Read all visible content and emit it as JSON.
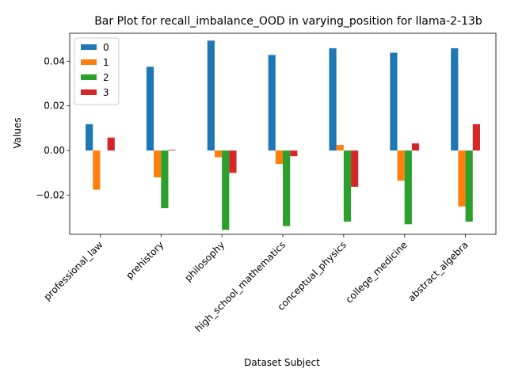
{
  "chart_data": {
    "type": "bar",
    "title": "Bar Plot for recall_imbalance_OOD in varying_position for llama-2-13b",
    "xlabel": "Dataset Subject",
    "ylabel": "Values",
    "ylim": [
      -0.0375,
      0.0525
    ],
    "yticks": [
      -0.02,
      0.0,
      0.02,
      0.04
    ],
    "ytick_labels": [
      "−0.02",
      "0.00",
      "0.02",
      "0.04"
    ],
    "grid": false,
    "legend_position": "top-left",
    "categories": [
      "professional_law",
      "prehistory",
      "philosophy",
      "high_school_mathematics",
      "conceptual_physics",
      "college_medicine",
      "abstract_algebra"
    ],
    "series": [
      {
        "name": "0",
        "color": "#1f77b4",
        "values": [
          0.0118,
          0.0375,
          0.0492,
          0.0428,
          0.0458,
          0.0438,
          0.0458
        ]
      },
      {
        "name": "1",
        "color": "#ff7f0e",
        "values": [
          -0.0175,
          -0.012,
          -0.003,
          -0.006,
          0.0025,
          -0.0135,
          -0.025
        ]
      },
      {
        "name": "2",
        "color": "#2ca02c",
        "values": [
          0.0,
          -0.0258,
          -0.0355,
          -0.0338,
          -0.0318,
          -0.033,
          -0.0318
        ]
      },
      {
        "name": "3",
        "color": "#d62728",
        "values": [
          0.0058,
          0.0003,
          -0.01,
          -0.0025,
          -0.0162,
          0.0032,
          0.0118
        ]
      }
    ]
  }
}
